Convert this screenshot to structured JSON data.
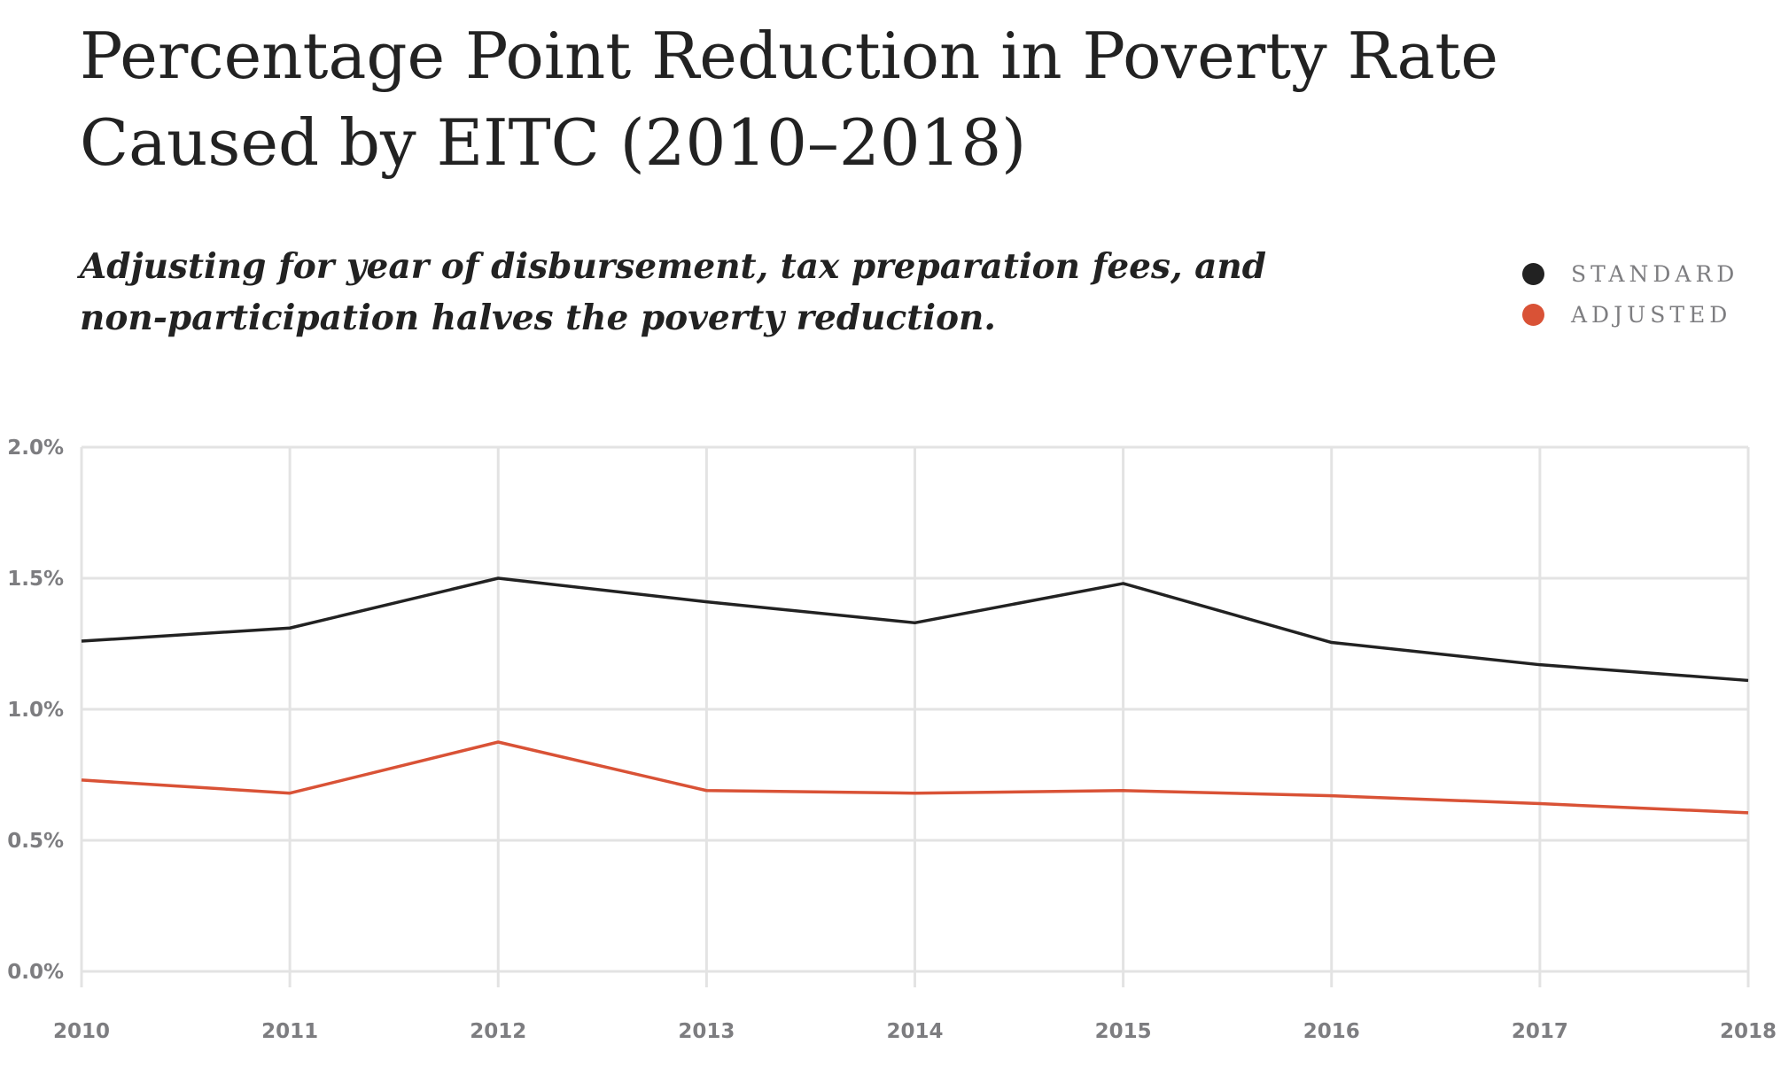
{
  "chart_data": {
    "type": "line",
    "title": "Percentage Point Reduction in Poverty Rate Caused by EITC (2010–2018)",
    "subtitle": "Adjusting for year of disbursement, tax preparation fees, and non-participation halves the poverty reduction.",
    "x": [
      2010,
      2011,
      2012,
      2013,
      2014,
      2015,
      2016,
      2017,
      2018
    ],
    "x_tick_labels": [
      "2010",
      "2011",
      "2012",
      "2013",
      "2014",
      "2015",
      "2016",
      "2017",
      "2018"
    ],
    "y_ticks": [
      0,
      0.5,
      1.0,
      1.5,
      2.0
    ],
    "y_tick_labels": [
      "0.0%",
      "0.5%",
      "1.0%",
      "1.5%",
      "2.0%"
    ],
    "ylim": [
      0,
      2.0
    ],
    "xlabel": "",
    "ylabel": "",
    "grid": true,
    "legend_position": "top-right",
    "series": [
      {
        "name": "STANDARD",
        "color": "#222222",
        "values": [
          1.26,
          1.31,
          1.5,
          1.41,
          1.33,
          1.48,
          1.255,
          1.17,
          1.11
        ]
      },
      {
        "name": "ADJUSTED",
        "color": "#d95236",
        "values": [
          0.73,
          0.68,
          0.875,
          0.69,
          0.68,
          0.69,
          0.67,
          0.64,
          0.605
        ]
      }
    ]
  }
}
